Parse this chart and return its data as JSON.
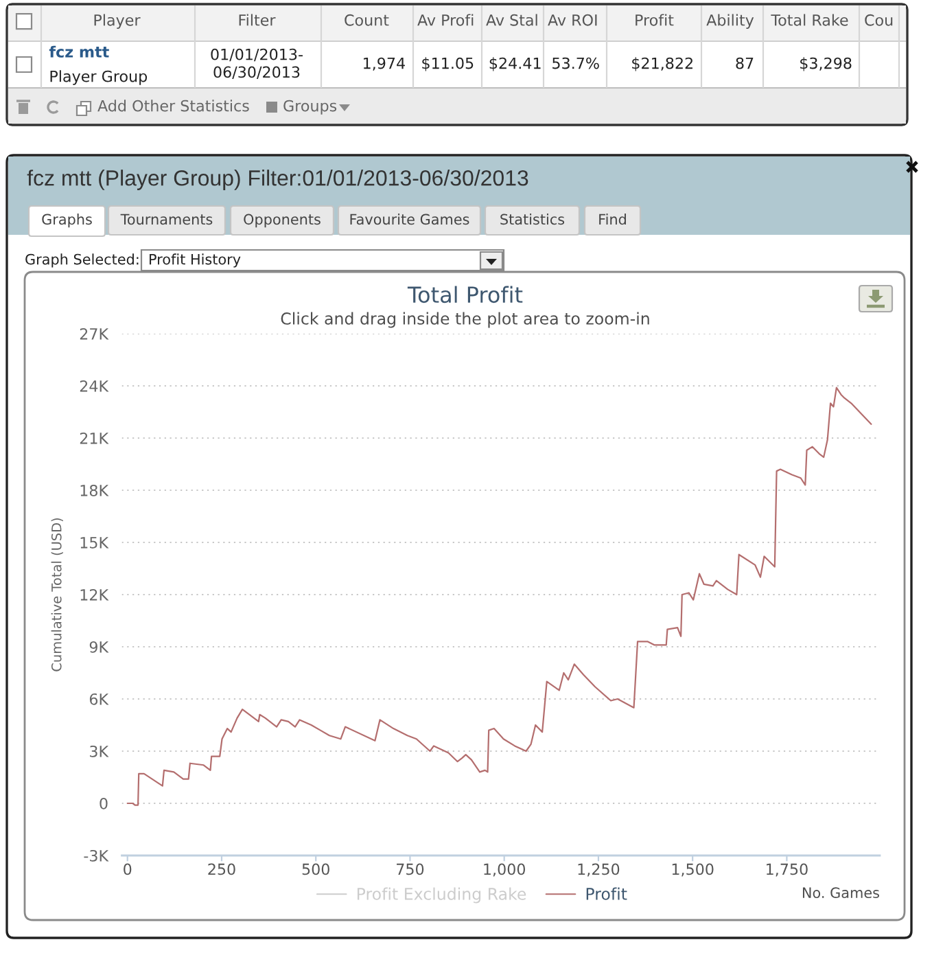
{
  "chart_data": {
    "type": "line",
    "title": "Total Profit",
    "subtitle": "Click and drag inside the plot area to zoom-in",
    "xlabel": "No. Games",
    "ylabel": "Cumulative Total (USD)",
    "annotations": [
      "Player",
      "Filter",
      "Count",
      "Av Profi",
      "Av Stal",
      "Av ROI",
      "Profit",
      "Ability",
      "Total Rake",
      "Cou",
      "fcz mtt",
      "Player Group",
      "01/01/2013-\n06/30/2013",
      "1,974",
      "$11.05",
      "$24.41",
      "53.7%",
      "$21,822",
      "87",
      "$3,298",
      "Add Other Statistics",
      "Groups",
      "fcz mtt (Player Group) Filter:01/01/2013-06/30/2013",
      "Graphs",
      "Tournaments",
      "Opponents",
      "Favourite Games",
      "Statistics",
      "Find",
      "Graph Selected:",
      "Profit History"
    ],
    "x": [
      0,
      14,
      20,
      28,
      30,
      44,
      93,
      97,
      123,
      148,
      162,
      166,
      202,
      220,
      223,
      245,
      251,
      265,
      275,
      291,
      305,
      348,
      351,
      366,
      396,
      408,
      427,
      445,
      457,
      488,
      512,
      536,
      566,
      578,
      657,
      670,
      706,
      743,
      767,
      803,
      813,
      852,
      876,
      888,
      898,
      913,
      935,
      949,
      956,
      959,
      973,
      998,
      1028,
      1058,
      1071,
      1083,
      1101,
      1113,
      1146,
      1158,
      1170,
      1186,
      1210,
      1241,
      1283,
      1301,
      1344,
      1348,
      1354,
      1381,
      1399,
      1430,
      1433,
      1460,
      1469,
      1472,
      1490,
      1502,
      1518,
      1530,
      1554,
      1563,
      1593,
      1617,
      1623,
      1666,
      1680,
      1690,
      1718,
      1723,
      1733,
      1763,
      1787,
      1799,
      1803,
      1818,
      1836,
      1848,
      1858,
      1866,
      1874,
      1882,
      1894,
      1903,
      1921,
      1974
    ],
    "series": [
      {
        "name": "Profit Excluding Rake",
        "color": "#cccccc",
        "values": [
          null,
          null,
          null,
          null,
          null,
          null,
          null,
          null,
          null,
          null,
          null,
          null,
          null,
          null,
          null,
          null,
          null,
          null,
          null,
          null,
          null,
          null,
          null,
          null,
          null,
          null,
          null,
          null,
          null,
          null,
          null,
          null,
          null,
          null,
          null,
          null,
          null,
          null,
          null,
          null,
          null,
          null,
          null,
          null,
          null,
          null,
          null,
          null,
          null,
          null,
          null,
          null,
          null,
          null,
          null,
          null,
          null,
          null,
          null,
          null,
          null,
          null,
          null,
          null,
          null,
          null,
          null,
          null,
          null,
          null,
          null,
          null,
          null,
          null,
          null,
          null,
          null,
          null,
          null,
          null,
          null,
          null,
          null,
          null,
          null,
          null,
          null,
          null,
          null,
          null,
          null,
          null,
          null,
          null,
          null,
          null,
          null,
          null,
          null,
          null,
          null,
          null,
          null,
          null,
          null,
          null
        ]
      },
      {
        "name": "Profit",
        "color": "#b46e6e",
        "values": [
          0,
          0,
          -100,
          -100,
          1700,
          1700,
          1000,
          1900,
          1800,
          1400,
          1400,
          2300,
          2200,
          1900,
          2700,
          2700,
          3700,
          4300,
          4100,
          4900,
          5400,
          4700,
          5100,
          4900,
          4400,
          4800,
          4700,
          4400,
          4800,
          4500,
          4200,
          3900,
          3700,
          4400,
          3600,
          4800,
          4300,
          3900,
          3700,
          3000,
          3300,
          2900,
          2400,
          2600,
          2800,
          2500,
          1800,
          1900,
          1800,
          4200,
          4300,
          3700,
          3300,
          3000,
          3400,
          4500,
          4100,
          7000,
          6500,
          7500,
          7100,
          8000,
          7400,
          6700,
          5900,
          6000,
          5500,
          7000,
          9300,
          9300,
          9100,
          9100,
          10000,
          10100,
          9600,
          12000,
          12100,
          11700,
          13200,
          12600,
          12500,
          12800,
          12300,
          12000,
          14300,
          13700,
          13000,
          14200,
          13600,
          19100,
          19200,
          18900,
          18700,
          18300,
          20300,
          20500,
          20100,
          19900,
          20900,
          23000,
          22800,
          23900,
          23500,
          23300,
          23000,
          21800
        ]
      }
    ],
    "xlim": [
      -15,
      1997
    ],
    "xticks": [
      0,
      250,
      500,
      750,
      {
        "value": 1000,
        "label": "1,000"
      },
      {
        "value": 1250,
        "label": "1,250"
      },
      {
        "value": 1500,
        "label": "1,500"
      },
      {
        "value": 1750,
        "label": "1,750"
      }
    ],
    "ylim": [
      -3000,
      27000
    ],
    "yticks": [
      {
        "value": -3000,
        "label": "-3K"
      },
      0,
      {
        "value": 3000,
        "label": "3K"
      },
      {
        "value": 6000,
        "label": "6K"
      },
      {
        "value": 9000,
        "label": "9K"
      },
      {
        "value": 12000,
        "label": "12K"
      },
      {
        "value": 15000,
        "label": "15K"
      },
      {
        "value": 18000,
        "label": "18K"
      },
      {
        "value": 21000,
        "label": "21K"
      },
      {
        "value": 24000,
        "label": "24K"
      },
      {
        "value": 27000,
        "label": "27K"
      }
    ],
    "grid": "y",
    "legend": "bottom"
  }
}
